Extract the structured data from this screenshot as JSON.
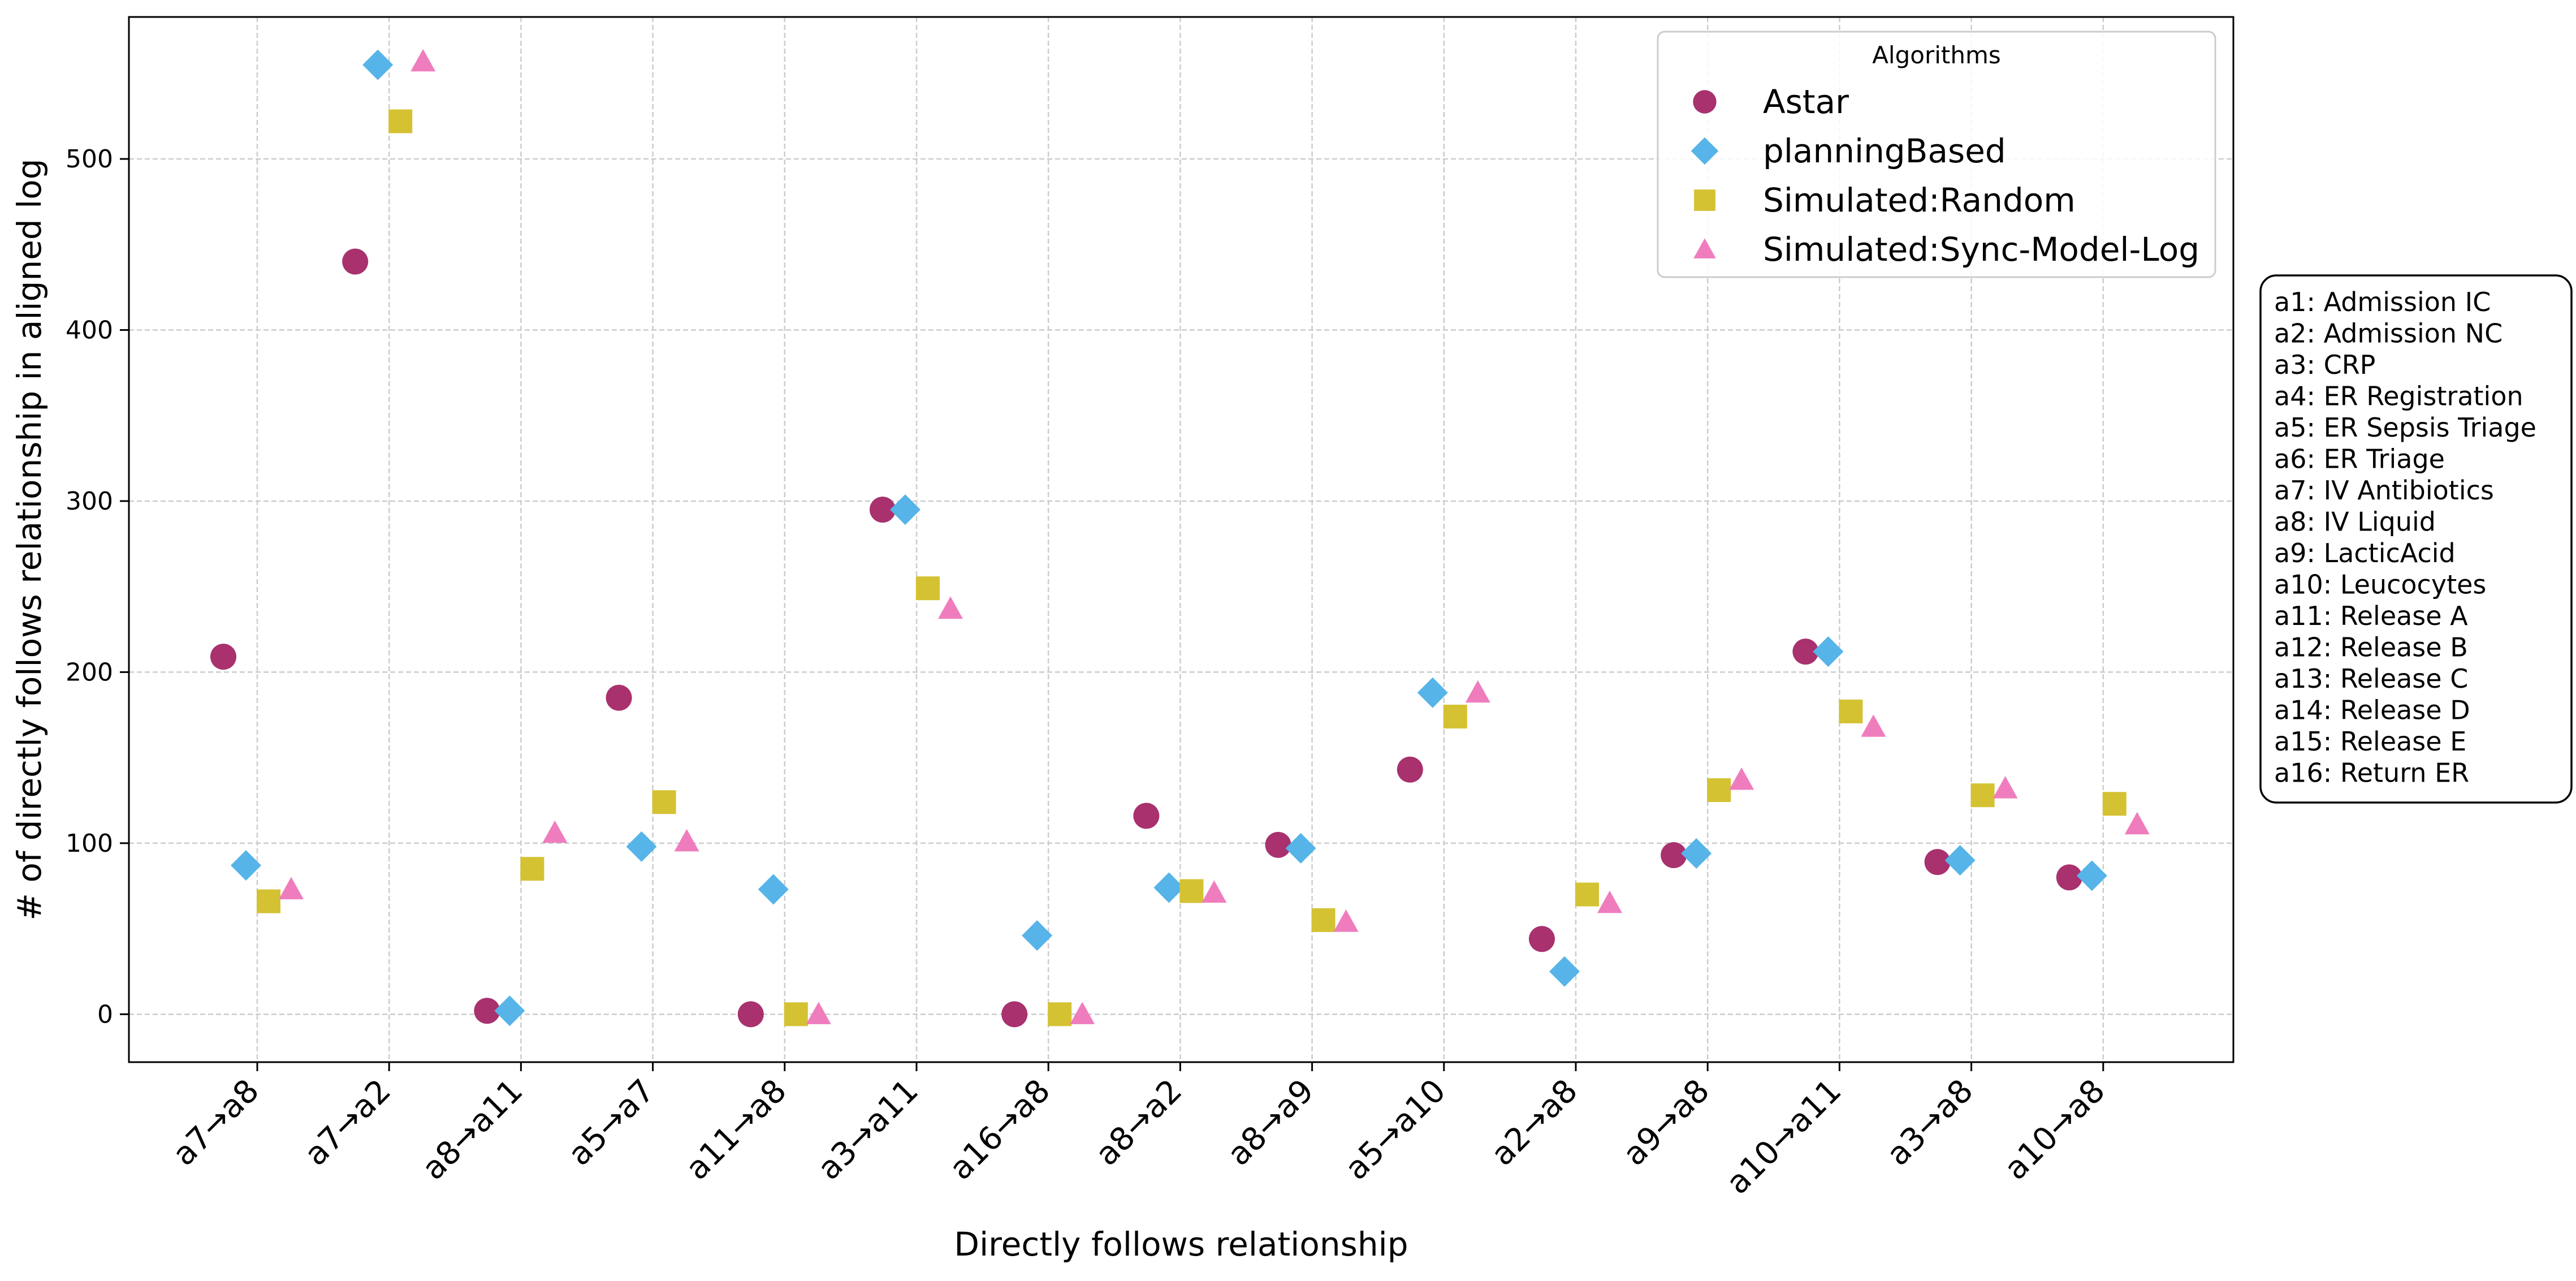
{
  "chart_data": {
    "type": "scatter",
    "title": "",
    "xlabel": "Directly follows relationship",
    "ylabel": "# of directly follows relationship in aligned log",
    "ylim": [
      -28,
      583
    ],
    "yticks": [
      0,
      100,
      200,
      300,
      400,
      500
    ],
    "grid": true,
    "legend_position": "top-right",
    "legend_title": "Algorithms",
    "categories": [
      "a7→a8",
      "a7→a2",
      "a8→a11",
      "a5→a7",
      "a11→a8",
      "a3→a11",
      "a16→a8",
      "a8→a2",
      "a8→a9",
      "a5→a10",
      "a2→a8",
      "a9→a8",
      "a10→a11",
      "a3→a8",
      "a10→a8"
    ],
    "series": [
      {
        "name": "Astar",
        "marker": "circle",
        "color": "#a8316e",
        "values": [
          209,
          440,
          2,
          185,
          0,
          295,
          0,
          116,
          99,
          143,
          44,
          93,
          212,
          89,
          80
        ]
      },
      {
        "name": "planningBased",
        "marker": "diamond",
        "color": "#56b4e9",
        "values": [
          87,
          555,
          2,
          98,
          73,
          295,
          46,
          74,
          97,
          188,
          25,
          94,
          212,
          90,
          81
        ]
      },
      {
        "name": "Simulated:Random",
        "marker": "square",
        "color": "#d4c233",
        "values": [
          66,
          522,
          85,
          124,
          0,
          249,
          0,
          72,
          55,
          174,
          70,
          131,
          177,
          128,
          123
        ]
      },
      {
        "name": "Simulated:Sync-Model-Log",
        "marker": "triangle",
        "color": "#ef7dbd",
        "values": [
          73,
          557,
          106,
          101,
          0,
          237,
          0,
          71,
          54,
          188,
          65,
          137,
          168,
          132,
          111
        ]
      }
    ],
    "annotation": [
      "a1: Admission IC",
      "a2: Admission NC",
      "a3: CRP",
      "a4: ER Registration",
      "a5: ER Sepsis Triage",
      "a6: ER Triage",
      "a7: IV Antibiotics",
      "a8: IV Liquid",
      "a9: LacticAcid",
      "a10: Leucocytes",
      "a11: Release A",
      "a12: Release B",
      "a13: Release C",
      "a14: Release D",
      "a15: Release E",
      "a16: Return ER"
    ]
  }
}
